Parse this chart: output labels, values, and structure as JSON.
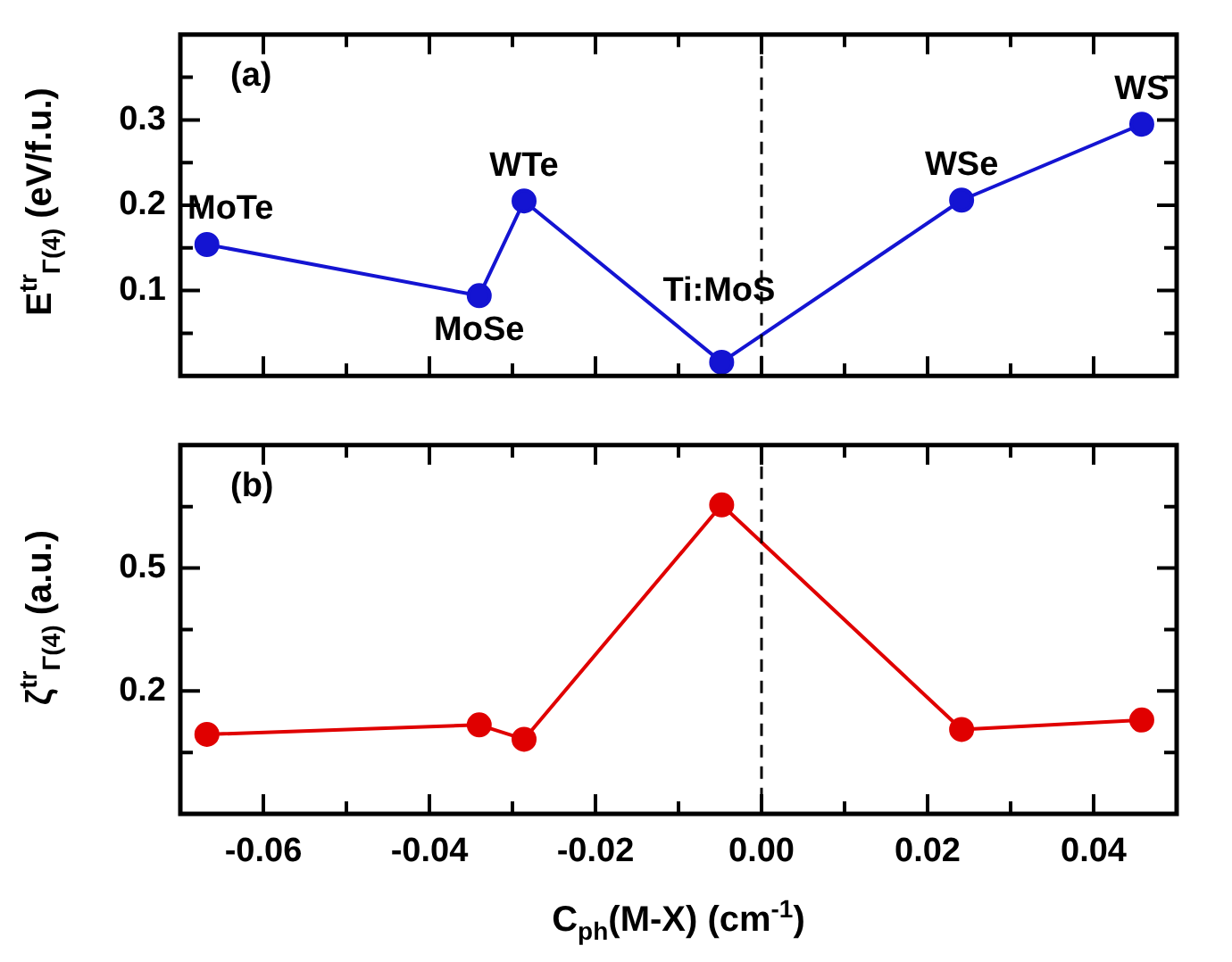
{
  "chart_data": [
    {
      "type": "line",
      "ylabel": "E$^{tr}$$_{Γ(4)}$ (eV/f.u.)",
      "x": [
        -0.0668,
        -0.034,
        -0.0286,
        -0.0048,
        0.0241,
        0.0458
      ],
      "series": [
        {
          "color": "#1414d2",
          "values": [
            0.154,
            0.094,
            0.205,
            0.016,
            0.206,
            0.295
          ]
        }
      ],
      "xlim": [
        -0.07,
        0.05
      ],
      "xticks": [
        {
          "value": -0.07,
          "label": null
        },
        {
          "value": -0.06,
          "label": null
        },
        {
          "value": -0.05,
          "label": null
        },
        {
          "value": -0.04,
          "label": null
        },
        {
          "value": -0.03,
          "label": null
        },
        {
          "value": -0.02,
          "label": null
        },
        {
          "value": -0.01,
          "label": null
        },
        {
          "value": 0,
          "label": null
        },
        {
          "value": 0.01,
          "label": null
        },
        {
          "value": 0.02,
          "label": null
        },
        {
          "value": 0.03,
          "label": null
        },
        {
          "value": 0.04,
          "label": null
        },
        {
          "value": 0.05,
          "label": null
        }
      ],
      "ylim": [
        0,
        0.4
      ],
      "yticks": [
        {
          "value": 0.05,
          "label": null
        },
        {
          "value": 0.1,
          "label": "0.1"
        },
        {
          "value": 0.15,
          "label": null
        },
        {
          "value": 0.2,
          "label": "0.2"
        },
        {
          "value": 0.25,
          "label": null
        },
        {
          "value": 0.3,
          "label": "0.3"
        },
        {
          "value": 0.35,
          "label": null
        }
      ],
      "tick_labels": "y",
      "marker": "circle",
      "line_style": "solid",
      "ref_lines": [
        {
          "axis": "x",
          "value": 0,
          "color": "#000000",
          "line_style": "dashed"
        }
      ],
      "annotations": [
        "(a)",
        {
          "text": "MoTe",
          "x": -0.0668,
          "y": 0.154
        },
        {
          "text": "MoSe",
          "x": -0.034,
          "y": 0.094
        },
        {
          "text": "WTe",
          "x": -0.0286,
          "y": 0.205
        },
        {
          "text": "Ti:MoS",
          "x": -0.0048,
          "y": 0.016
        },
        {
          "text": "WSe",
          "x": 0.0241,
          "y": 0.206
        },
        {
          "text": "WS",
          "x": 0.0458,
          "y": 0.295
        }
      ]
    },
    {
      "type": "line",
      "xlabel": "C$_{ph}$(M-X) (cm$^{-1}$)",
      "ylabel": "ζ$^{tr}$$_{Γ(4)}$ (a.u.)",
      "x": [
        -0.0668,
        -0.034,
        -0.0286,
        -0.0048,
        0.0241,
        0.0458
      ],
      "series": [
        {
          "color": "#e00000",
          "values": [
            0.094,
            0.117,
            0.082,
            0.654,
            0.106,
            0.129
          ]
        }
      ],
      "xlim": [
        -0.07,
        0.05
      ],
      "xticks": [
        {
          "value": -0.07,
          "label": null
        },
        {
          "value": -0.06,
          "label": "-0.06"
        },
        {
          "value": -0.05,
          "label": null
        },
        {
          "value": -0.04,
          "label": "-0.04"
        },
        {
          "value": -0.03,
          "label": null
        },
        {
          "value": -0.02,
          "label": "-0.02"
        },
        {
          "value": -0.01,
          "label": null
        },
        {
          "value": 0,
          "label": "0.00"
        },
        {
          "value": 0.01,
          "label": null
        },
        {
          "value": 0.02,
          "label": "0.02"
        },
        {
          "value": 0.03,
          "label": null
        },
        {
          "value": 0.04,
          "label": "0.04"
        },
        {
          "value": 0.05,
          "label": null
        }
      ],
      "ylim": [
        -0.1,
        0.8
      ],
      "yticks": [
        {
          "value": 0.05,
          "label": null
        },
        {
          "value": 0.2,
          "label": "0.2"
        },
        {
          "value": 0.35,
          "label": null
        },
        {
          "value": 0.5,
          "label": "0.5"
        },
        {
          "value": 0.65,
          "label": null
        }
      ],
      "marker": "circle",
      "line_style": "solid",
      "ref_lines": [
        {
          "axis": "x",
          "value": 0,
          "color": "#000000",
          "line_style": "dashed"
        }
      ],
      "annotations": [
        "(b)"
      ]
    }
  ]
}
